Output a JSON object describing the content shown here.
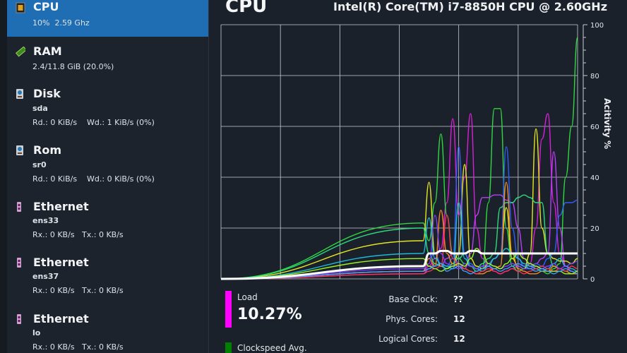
{
  "sidebar": {
    "items": [
      {
        "name": "CPU",
        "sub": "10%  2.59 Ghz",
        "icon": "cpu-chip-icon",
        "selected": true
      },
      {
        "name": "RAM",
        "sub": "2.4/11.8 GiB (20.0%)",
        "icon": "ram-module-icon"
      },
      {
        "name": "Disk",
        "device": "sda",
        "sub": "Rd.: 0 KiB/s    Wd.: 1 KiB/s (0%)",
        "icon": "hard-disk-icon"
      },
      {
        "name": "Rom",
        "device": "sr0",
        "sub": "Rd.: 0 KiB/s    Wd.: 0 KiB/s (0%)",
        "icon": "hard-disk-icon"
      },
      {
        "name": "Ethernet",
        "device": "ens33",
        "sub": "Rx.: 0 KB/s   Tx.: 0 KB/s",
        "icon": "ethernet-icon"
      },
      {
        "name": "Ethernet",
        "device": "ens37",
        "sub": "Rx.: 0 KB/s   Tx.: 0 KB/s",
        "icon": "ethernet-icon"
      },
      {
        "name": "Ethernet",
        "device": "lo",
        "sub": "Rx.: 0 KB/s   Tx.: 0 KB/s",
        "icon": "ethernet-icon"
      }
    ]
  },
  "main": {
    "title": "CPU",
    "model": "Intel(R) Core(TM) i7-8850H CPU @ 2.60GHz",
    "load_label": "Load",
    "load_value": "10.27%",
    "clock_label": "Clockspeed Avg.",
    "stats": [
      {
        "label": "Base Clock:",
        "value": "??"
      },
      {
        "label": "Phys. Cores:",
        "value": "12"
      },
      {
        "label": "Logical Cores:",
        "value": "12"
      }
    ],
    "colors": {
      "load": "#ff00ff",
      "clock": "#008000",
      "selected": "#1f6db3"
    }
  },
  "chart_data": {
    "type": "line",
    "ylabel": "Acitivity %",
    "ylim": [
      0,
      100
    ],
    "yticks": [
      "0",
      "20",
      "40",
      "60",
      "80",
      "100"
    ],
    "grid": true,
    "x": [
      0,
      34,
      35,
      36,
      37,
      38,
      39,
      40,
      41,
      42,
      43,
      44,
      45,
      46,
      47,
      48,
      49,
      50,
      51,
      52,
      53,
      54,
      55,
      56,
      57,
      58,
      59,
      60
    ],
    "xlim": [
      0,
      60
    ],
    "total": {
      "color": "#ffffff",
      "values": [
        0,
        5,
        10,
        10,
        11,
        11,
        10,
        10,
        10,
        11,
        11,
        10,
        10,
        10,
        10,
        10,
        10,
        10,
        10,
        10,
        10,
        10,
        10,
        10,
        10,
        10,
        10,
        10
      ]
    },
    "series": [
      {
        "color": "#e020e0",
        "values": [
          0,
          3,
          5,
          8,
          12,
          30,
          63,
          25,
          40,
          65,
          20,
          8,
          5,
          3,
          2,
          3,
          4,
          5,
          4,
          6,
          20,
          55,
          65,
          30,
          10,
          5,
          3,
          2
        ]
      },
      {
        "color": "#30e040",
        "values": [
          0,
          22,
          15,
          30,
          57,
          25,
          10,
          8,
          6,
          5,
          3,
          4,
          30,
          67,
          67,
          20,
          5,
          3,
          4,
          6,
          4,
          3,
          2,
          4,
          6,
          40,
          60,
          95
        ]
      },
      {
        "color": "#c040ff",
        "values": [
          0,
          2,
          4,
          6,
          5,
          8,
          10,
          6,
          4,
          10,
          25,
          32,
          32,
          33,
          33,
          31,
          30,
          20,
          8,
          5,
          6,
          8,
          10,
          50,
          20,
          5,
          3,
          2
        ]
      },
      {
        "color": "#f0f020",
        "values": [
          0,
          15,
          38,
          10,
          5,
          4,
          6,
          10,
          45,
          8,
          5,
          4,
          6,
          8,
          10,
          28,
          8,
          5,
          4,
          10,
          59,
          20,
          10,
          8,
          7,
          7,
          6,
          8
        ]
      },
      {
        "color": "#30e080",
        "values": [
          0,
          20,
          10,
          6,
          5,
          4,
          6,
          8,
          10,
          5,
          4,
          6,
          8,
          10,
          28,
          30,
          30,
          32,
          33,
          32,
          30,
          30,
          10,
          5,
          4,
          3,
          2,
          2
        ]
      },
      {
        "color": "#3060ff",
        "values": [
          0,
          5,
          8,
          10,
          6,
          5,
          8,
          52,
          10,
          6,
          4,
          5,
          6,
          8,
          10,
          52,
          20,
          8,
          5,
          4,
          6,
          5,
          8,
          10,
          25,
          30,
          30,
          31
        ]
      },
      {
        "color": "#ff9020",
        "values": [
          0,
          3,
          8,
          5,
          27,
          10,
          6,
          5,
          4,
          3,
          2,
          2,
          3,
          4,
          5,
          38,
          10,
          4,
          3,
          2,
          2,
          3,
          3,
          5,
          4,
          3,
          2,
          2
        ]
      },
      {
        "color": "#20c0e0",
        "values": [
          0,
          10,
          24,
          8,
          6,
          5,
          4,
          30,
          8,
          5,
          4,
          3,
          5,
          8,
          10,
          12,
          10,
          8,
          6,
          5,
          4,
          3,
          4,
          6,
          8,
          5,
          4,
          3
        ]
      },
      {
        "color": "#ff3050",
        "values": [
          0,
          2,
          3,
          4,
          5,
          25,
          8,
          5,
          4,
          3,
          2,
          3,
          4,
          3,
          2,
          3,
          4,
          3,
          2,
          3,
          4,
          5,
          4,
          3,
          4,
          3,
          5,
          4
        ]
      },
      {
        "color": "#8040ff",
        "values": [
          0,
          4,
          6,
          25,
          10,
          6,
          5,
          4,
          6,
          5,
          4,
          5,
          6,
          5,
          4,
          5,
          6,
          5,
          4,
          4,
          5,
          4,
          5,
          6,
          4,
          5,
          6,
          7
        ]
      },
      {
        "color": "#a0ff20",
        "values": [
          0,
          8,
          5,
          4,
          3,
          4,
          5,
          6,
          5,
          8,
          12,
          10,
          6,
          5,
          4,
          6,
          8,
          10,
          8,
          6,
          5,
          4,
          3,
          3,
          3,
          2,
          2,
          3
        ]
      },
      {
        "color": "#40a0ff",
        "values": [
          0,
          3,
          4,
          5,
          6,
          3,
          4,
          5,
          3,
          2,
          3,
          4,
          5,
          4,
          3,
          4,
          5,
          6,
          5,
          4,
          3,
          4,
          3,
          2,
          3,
          4,
          3,
          2
        ]
      }
    ]
  }
}
